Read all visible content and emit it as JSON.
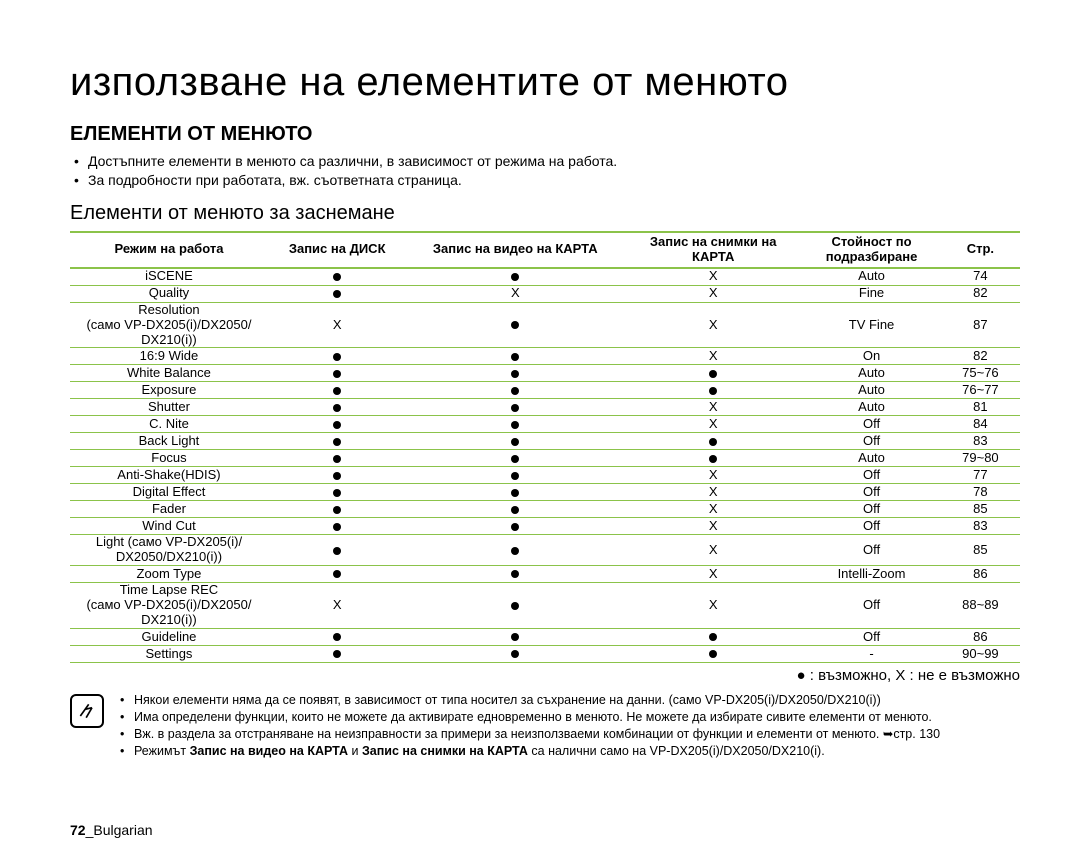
{
  "title": "използване на елементите от менюто",
  "section_heading": "ЕЛЕМЕНТИ ОТ МЕНЮТО",
  "intro": [
    "Достъпните елементи в менюто са различни, в зависимост от режима на работа.",
    "За подробности при работата, вж. съответната страница."
  ],
  "subheading": "Елементи от менюто за заснемане",
  "columns": {
    "mode": "Режим на работа",
    "disc": "Запис на ДИСК",
    "video": "Запис на видео на КАРТА",
    "photo": "Запис на снимки на КАРТА",
    "default": "Стойност по подразбиране",
    "page": "Стр."
  },
  "rows": [
    {
      "name": "iSCENE",
      "disc": "dot",
      "video": "dot",
      "photo": "X",
      "def": "Auto",
      "page": "74"
    },
    {
      "name": "Quality",
      "disc": "dot",
      "video": "X",
      "photo": "X",
      "def": "Fine",
      "page": "82"
    },
    {
      "name": "Resolution\n(само VP-DX205(i)/DX2050/\nDX210(i))",
      "disc": "X",
      "video": "dot",
      "photo": "X",
      "def": "TV Fine",
      "page": "87"
    },
    {
      "name": "16:9 Wide",
      "disc": "dot",
      "video": "dot",
      "photo": "X",
      "def": "On",
      "page": "82"
    },
    {
      "name": "White Balance",
      "disc": "dot",
      "video": "dot",
      "photo": "dot",
      "def": "Auto",
      "page": "75~76"
    },
    {
      "name": "Exposure",
      "disc": "dot",
      "video": "dot",
      "photo": "dot",
      "def": "Auto",
      "page": "76~77"
    },
    {
      "name": "Shutter",
      "disc": "dot",
      "video": "dot",
      "photo": "X",
      "def": "Auto",
      "page": "81"
    },
    {
      "name": "C. Nite",
      "disc": "dot",
      "video": "dot",
      "photo": "X",
      "def": "Off",
      "page": "84"
    },
    {
      "name": "Back Light",
      "disc": "dot",
      "video": "dot",
      "photo": "dot",
      "def": "Off",
      "page": "83"
    },
    {
      "name": "Focus",
      "disc": "dot",
      "video": "dot",
      "photo": "dot",
      "def": "Auto",
      "page": "79~80"
    },
    {
      "name": "Anti-Shake(HDIS)",
      "disc": "dot",
      "video": "dot",
      "photo": "X",
      "def": "Off",
      "page": "77"
    },
    {
      "name": "Digital Effect",
      "disc": "dot",
      "video": "dot",
      "photo": "X",
      "def": "Off",
      "page": "78"
    },
    {
      "name": "Fader",
      "disc": "dot",
      "video": "dot",
      "photo": "X",
      "def": "Off",
      "page": "85"
    },
    {
      "name": "Wind Cut",
      "disc": "dot",
      "video": "dot",
      "photo": "X",
      "def": "Off",
      "page": "83"
    },
    {
      "name": "Light (само VP-DX205(i)/\nDX2050/DX210(i))",
      "disc": "dot",
      "video": "dot",
      "photo": "X",
      "def": "Off",
      "page": "85"
    },
    {
      "name": "Zoom Type",
      "disc": "dot",
      "video": "dot",
      "photo": "X",
      "def": "Intelli-Zoom",
      "page": "86"
    },
    {
      "name": "Time Lapse REC\n(само VP-DX205(i)/DX2050/\nDX210(i))",
      "disc": "X",
      "video": "dot",
      "photo": "X",
      "def": "Off",
      "page": "88~89"
    },
    {
      "name": "Guideline",
      "disc": "dot",
      "video": "dot",
      "photo": "dot",
      "def": "Off",
      "page": "86"
    },
    {
      "name": "Settings",
      "disc": "dot",
      "video": "dot",
      "photo": "dot",
      "def": "-",
      "page": "90~99"
    }
  ],
  "legend": "● : възможно, X : не е възможно",
  "notes": [
    "Някои елементи няма да се появят, в зависимост от типа носител за съхранение на данни. (само VP-DX205(i)/DX2050/DX210(i))",
    "Има определени функции, които не можете да активирате едновременно в менюто. Не можете да избирате сивите елементи от менюто.",
    "Вж. в раздела за отстраняване на неизправности за примери за неизползваеми комбинации от функции и елементи от менюто. ➥стр. 130",
    "Режимът <b>Запис на видео на КАРТА</b> и <b>Запис на снимки на КАРТА</b> са налични само на VP-DX205(i)/DX2050/DX210(i)."
  ],
  "footer_page": "72",
  "footer_lang": "Bulgarian",
  "colors": {
    "rule": "#8bc34a",
    "text": "#000000",
    "bg": "#ffffff"
  }
}
